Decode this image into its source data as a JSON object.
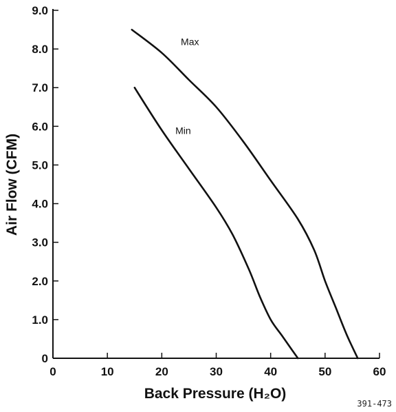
{
  "chart_data": {
    "type": "line",
    "title": "",
    "xlabel": "Back Pressure (H₂O)",
    "ylabel": "Air Flow (CFM)",
    "xlim": [
      0,
      60
    ],
    "ylim": [
      0,
      9.0
    ],
    "xticks": [
      0,
      10,
      20,
      30,
      40,
      50,
      60
    ],
    "xtick_labels": [
      "0",
      "10",
      "20",
      "30",
      "40",
      "50",
      "60"
    ],
    "yticks": [
      0,
      1,
      2,
      3,
      4,
      5,
      6,
      7,
      8,
      9
    ],
    "ytick_labels": [
      "0",
      "1.0",
      "2.0",
      "3.0",
      "4.0",
      "5.0",
      "6.0",
      "7.0",
      "8.0",
      "9.0"
    ],
    "grid": false,
    "legend": "none",
    "series": [
      {
        "name": "Max",
        "x": [
          14.5,
          20,
          25,
          30,
          35,
          40,
          45,
          48,
          50,
          52,
          54,
          56
        ],
        "y": [
          8.5,
          7.9,
          7.2,
          6.5,
          5.6,
          4.6,
          3.6,
          2.8,
          2.0,
          1.3,
          0.6,
          0
        ]
      },
      {
        "name": "Min",
        "x": [
          15,
          20,
          25,
          30,
          33,
          36,
          38,
          40,
          42,
          44,
          45
        ],
        "y": [
          7.0,
          5.9,
          4.9,
          3.9,
          3.2,
          2.3,
          1.6,
          1.0,
          0.6,
          0.2,
          0
        ]
      }
    ],
    "annotations": [
      {
        "text": "Max",
        "x": 23.5,
        "y": 8.1
      },
      {
        "text": "Min",
        "x": 22.5,
        "y": 5.8
      }
    ],
    "figure_code": "391-473"
  }
}
